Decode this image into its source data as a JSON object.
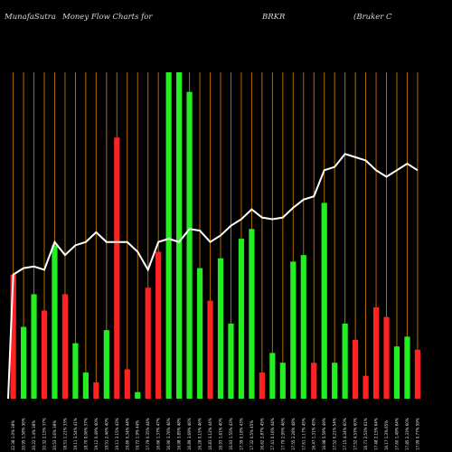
{
  "header": {
    "site": "MunafaSutra",
    "title": "Money Flow  Charts for",
    "symbol": "BRKR",
    "company": "(Bruker C"
  },
  "chart_data": {
    "type": "bar",
    "title": "MunafaSutra  Money Flow  Charts for BRKR (Bruker C",
    "xlabel": "",
    "ylabel": "",
    "ylim": [
      0,
      100
    ],
    "grid": "vertical lines, orange",
    "colors": {
      "up": "#22ee22",
      "down": "#ff2222",
      "grid": "#b36b00",
      "line": "#ffffff",
      "background": "#000000"
    },
    "categories": [
      "22.38 1.0% 38%",
      "20.95 1.58% 36%",
      "20.22 1.4% 38%",
      "20.32 2.15% 37%",
      "20.53 3.6% 38%",
      "18.51 1.21% 33%",
      "19.11 3.54% 41%",
      "18.70 0.06% 37%",
      "19.12 0.49% 40%",
      "19.51 2.46% 40%",
      "19.11 3.15% 43%",
      "19.80 0.34% 44%",
      "19.72 1.9% 44%",
      "17.79 0.35% 44%",
      "16.66 1.37% 47%",
      "16.90 3.76% 46%",
      "16.98 3.85% 48%",
      "16.89 3.69% 46%",
      "16.28 0.15% 46%",
      "16.83 3.12% 44%",
      "16.93 1.61% 40%",
      "16.93 1.55% 43%",
      "17.39 0.18% 43%",
      "17.32 0.5% 45%",
      "16.62 2.87% 45%",
      "17.41 0.16% 44%",
      "17.79 2.95% 46%",
      "17.55 2.28% 48%",
      "17.61 1.17% 45%",
      "16.47 1.31% 45%",
      "16.98 5.59% 49%",
      "17.52 0.21% 54%",
      "17.15 4.34% 60%",
      "17.52 4.53% 60%",
      "16.71 2.53% 61%",
      "17.48 2.15% 64%",
      "16.17 1.3% 65%",
      "17.60 1.49% 64%",
      "17.85 2.33% 60%",
      "17.99 0.77% 59%"
    ],
    "series": [
      {
        "role": "money flow volume bars",
        "values": [
          38,
          22,
          32,
          27,
          47,
          32,
          17,
          8,
          5,
          21,
          80,
          9,
          2,
          34,
          45,
          100,
          100,
          94,
          40,
          30,
          43,
          23,
          49,
          52,
          8,
          14,
          11,
          42,
          44,
          11,
          60,
          11,
          23,
          18,
          7,
          28,
          25,
          16,
          19,
          15
        ],
        "colors": [
          "down",
          "up",
          "up",
          "down",
          "up",
          "down",
          "up",
          "up",
          "down",
          "up",
          "down",
          "down",
          "up",
          "down",
          "down",
          "up",
          "up",
          "up",
          "up",
          "down",
          "up",
          "up",
          "up",
          "up",
          "down",
          "up",
          "up",
          "up",
          "up",
          "down",
          "up",
          "up",
          "up",
          "down",
          "down",
          "down",
          "down",
          "up",
          "up",
          "down"
        ]
      },
      {
        "role": "money flow line",
        "values": [
          38,
          40,
          40.5,
          39.5,
          48,
          44,
          47,
          48,
          51,
          48,
          48,
          48,
          45,
          39.5,
          48,
          49,
          48,
          52,
          51.5,
          48,
          50,
          53,
          55,
          58,
          55.5,
          55,
          55.5,
          58.5,
          61,
          62,
          70,
          71,
          75,
          74,
          73,
          70,
          68,
          70,
          72,
          70
        ]
      }
    ]
  }
}
